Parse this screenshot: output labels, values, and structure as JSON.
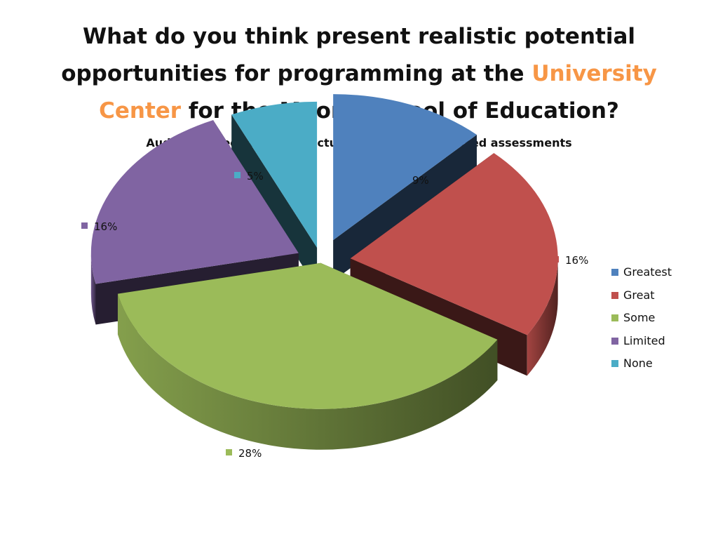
{
  "slide": {
    "title_part1": "What do you think present realistic potential opportunities for programming at the ",
    "title_highlight": "University Center",
    "title_part2": " for the Moore School of Education?",
    "highlight_color": "#f79646"
  },
  "chart_data": {
    "type": "pie",
    "title": "Audio or video streamed lectures with mastery-based assessments",
    "legend_position": "right",
    "exploded_3d": true,
    "categories": [
      "Greatest",
      "Great",
      "Some",
      "Limited",
      "None"
    ],
    "values": [
      9,
      16,
      28,
      16,
      5
    ],
    "data_labels": [
      "9%",
      "16%",
      "28%",
      "16%",
      "5%"
    ],
    "colors": [
      "#4f81bd",
      "#c0504d",
      "#9bbb59",
      "#8064a2",
      "#4bacc6"
    ]
  }
}
